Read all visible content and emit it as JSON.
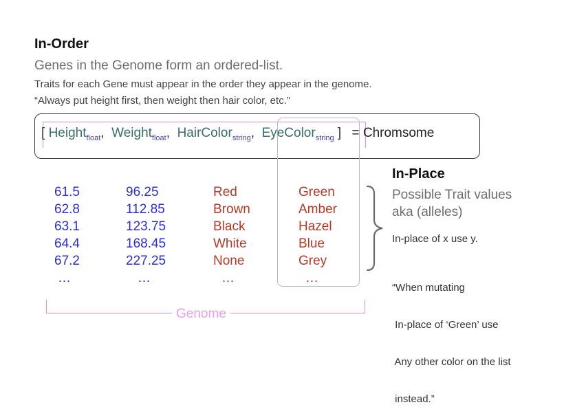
{
  "heading_order": "In-Order",
  "subtitle": "Genes in the Genome form an ordered-list.",
  "line1": "Traits for each Gene must appear in the order they appear in the genome.",
  "line2": "“Always put height first, then weight then hair color, etc.”",
  "chromosome": {
    "open": "[",
    "close": "]",
    "equals": "= Chromsome",
    "genes": [
      {
        "name": "Height",
        "type": "float"
      },
      {
        "name": "Weight",
        "type": "float"
      },
      {
        "name": "HairColor",
        "type": "string"
      },
      {
        "name": "EyeColor",
        "type": "string"
      }
    ],
    "sep": ","
  },
  "columns": [
    {
      "values": [
        "61.5",
        "62.8",
        "63.1",
        "64.4",
        "67.2",
        "…"
      ],
      "color": "#2b2fcf"
    },
    {
      "values": [
        "96.25",
        "112.85",
        "123.75",
        "168.45",
        "227.25",
        "…"
      ],
      "color": "#2b2fcf"
    },
    {
      "values": [
        "Red",
        "Brown",
        "Black",
        "White",
        "None",
        "…"
      ],
      "color": "#b33a28"
    },
    {
      "values": [
        "Green",
        "Amber",
        "Hazel",
        "Blue",
        "Grey",
        "…"
      ],
      "color": "#b33a28"
    }
  ],
  "genome_label": "Genome",
  "heading_place": "In-Place",
  "possible_line1": "Possible Trait values",
  "possible_line2": "aka (alleles)",
  "inplace_note": "In-place of x use y.",
  "quote": [
    "“When mutating",
    " In-place of ‘Green’ use",
    " Any other color on the list",
    " instead.”"
  ]
}
